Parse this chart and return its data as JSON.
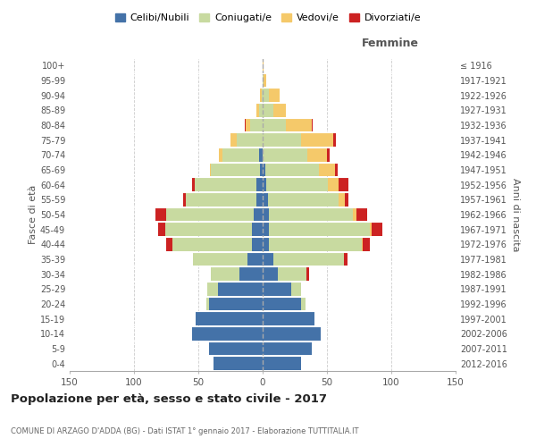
{
  "age_groups": [
    "0-4",
    "5-9",
    "10-14",
    "15-19",
    "20-24",
    "25-29",
    "30-34",
    "35-39",
    "40-44",
    "45-49",
    "50-54",
    "55-59",
    "60-64",
    "65-69",
    "70-74",
    "75-79",
    "80-84",
    "85-89",
    "90-94",
    "95-99",
    "100+"
  ],
  "birth_years": [
    "2012-2016",
    "2007-2011",
    "2002-2006",
    "1997-2001",
    "1992-1996",
    "1987-1991",
    "1982-1986",
    "1977-1981",
    "1972-1976",
    "1967-1971",
    "1962-1966",
    "1957-1961",
    "1952-1956",
    "1947-1951",
    "1942-1946",
    "1937-1941",
    "1932-1936",
    "1927-1931",
    "1922-1926",
    "1917-1921",
    "≤ 1916"
  ],
  "male": {
    "celibe": [
      38,
      42,
      55,
      52,
      42,
      35,
      18,
      12,
      8,
      8,
      7,
      5,
      5,
      2,
      3,
      0,
      0,
      0,
      0,
      0,
      0
    ],
    "coniugato": [
      0,
      0,
      0,
      0,
      2,
      8,
      22,
      42,
      62,
      68,
      68,
      55,
      48,
      38,
      28,
      20,
      10,
      3,
      1,
      0,
      0
    ],
    "vedovo": [
      0,
      0,
      0,
      0,
      0,
      0,
      0,
      0,
      0,
      0,
      0,
      0,
      0,
      1,
      3,
      5,
      3,
      2,
      1,
      0,
      0
    ],
    "divorziato": [
      0,
      0,
      0,
      0,
      0,
      0,
      0,
      0,
      5,
      5,
      8,
      2,
      2,
      0,
      0,
      0,
      1,
      0,
      0,
      0,
      0
    ]
  },
  "female": {
    "nubile": [
      30,
      38,
      45,
      40,
      30,
      22,
      12,
      8,
      5,
      5,
      5,
      4,
      3,
      2,
      0,
      0,
      0,
      0,
      0,
      0,
      0
    ],
    "coniugata": [
      0,
      0,
      0,
      0,
      3,
      8,
      22,
      55,
      72,
      78,
      65,
      55,
      48,
      42,
      35,
      30,
      18,
      8,
      5,
      1,
      0
    ],
    "vedova": [
      0,
      0,
      0,
      0,
      0,
      0,
      0,
      0,
      1,
      2,
      3,
      5,
      8,
      12,
      15,
      25,
      20,
      10,
      8,
      2,
      1
    ],
    "divorziata": [
      0,
      0,
      0,
      0,
      0,
      0,
      2,
      3,
      5,
      8,
      8,
      3,
      8,
      2,
      2,
      2,
      1,
      0,
      0,
      0,
      0
    ]
  },
  "colors": {
    "celibe_nubile": "#4472a8",
    "coniugato_a": "#c8daa0",
    "vedovo_a": "#f5c96a",
    "divorziato_a": "#cc2222"
  },
  "title": "Popolazione per età, sesso e stato civile - 2017",
  "subtitle": "COMUNE DI ARZAGO D'ADDA (BG) - Dati ISTAT 1° gennaio 2017 - Elaborazione TUTTITALIA.IT",
  "xlabel_right": "Femmine",
  "ylabel_left": "Fasce di età",
  "ylabel_right": "Anni di nascita",
  "xlim": 150,
  "legend_labels": [
    "Celibi/Nubili",
    "Coniugati/e",
    "Vedovi/e",
    "Divorziati/e"
  ],
  "background_color": "#ffffff",
  "grid_color": "#cccccc"
}
